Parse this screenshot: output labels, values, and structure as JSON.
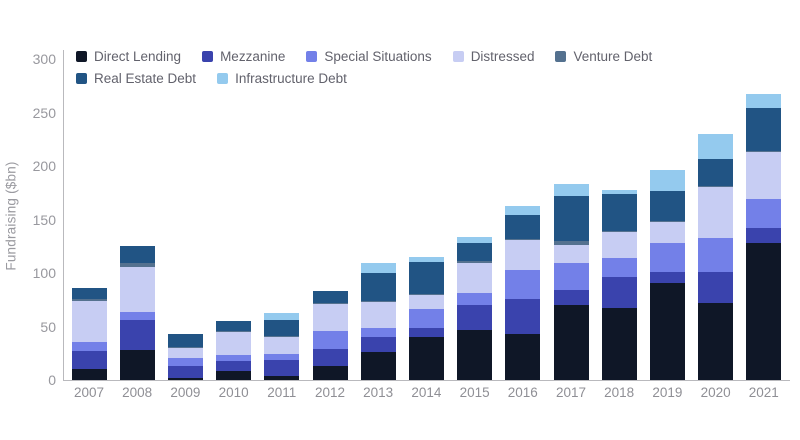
{
  "chart": {
    "y_axis_title": "Fundraising ($bn)"
  },
  "chart_data": {
    "type": "bar",
    "stacked": true,
    "title": "",
    "xlabel": "",
    "ylabel": "Fundraising ($bn)",
    "ylim": [
      0,
      300
    ],
    "y_ticks": [
      0,
      50,
      100,
      150,
      200,
      250,
      300
    ],
    "grid": false,
    "legend_position": "top-left",
    "legend_rows": [
      5,
      2
    ],
    "categories": [
      "2007",
      "2008",
      "2009",
      "2010",
      "2011",
      "2012",
      "2013",
      "2014",
      "2015",
      "2016",
      "2017",
      "2018",
      "2019",
      "2020",
      "2021"
    ],
    "series": [
      {
        "name": "Direct Lending",
        "color": "#0f1727",
        "values": [
          10,
          28,
          2,
          8,
          4,
          13,
          26,
          40,
          47,
          43,
          70,
          67,
          91,
          72,
          128
        ]
      },
      {
        "name": "Mezzanine",
        "color": "#3a43ad",
        "values": [
          17,
          28,
          11,
          10,
          15,
          16,
          14,
          9,
          23,
          33,
          14,
          29,
          10,
          29,
          14
        ]
      },
      {
        "name": "Special Situations",
        "color": "#7380e8",
        "values": [
          9,
          8,
          8,
          5,
          5,
          17,
          9,
          17,
          11,
          27,
          25,
          18,
          27,
          32,
          27
        ]
      },
      {
        "name": "Distressed",
        "color": "#c7cdf3",
        "values": [
          38,
          42,
          9,
          22,
          16,
          25,
          24,
          13,
          28,
          28,
          17,
          24,
          20,
          47,
          44
        ]
      },
      {
        "name": "Venture Debt",
        "color": "#54718f",
        "values": [
          2,
          3,
          1,
          1,
          1,
          1,
          1,
          1,
          2,
          1,
          4,
          1,
          1,
          1,
          1
        ]
      },
      {
        "name": "Real Estate Debt",
        "color": "#215484",
        "values": [
          10,
          16,
          12,
          9,
          15,
          11,
          26,
          30,
          17,
          22,
          42,
          35,
          28,
          26,
          40
        ]
      },
      {
        "name": "Infrastructure Debt",
        "color": "#94caee",
        "values": [
          0,
          0,
          0,
          0,
          7,
          0,
          9,
          5,
          6,
          9,
          11,
          4,
          19,
          23,
          13
        ]
      }
    ]
  }
}
